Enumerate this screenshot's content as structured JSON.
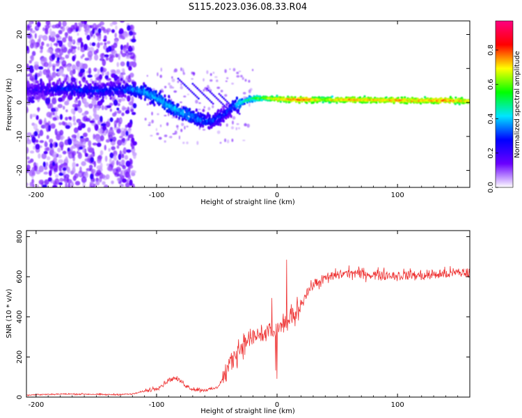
{
  "title": "S115.2023.036.08.33.R04",
  "chart_data": [
    {
      "type": "heatmap",
      "xlabel": "Height of straight line (km)",
      "ylabel": "Frequency (Hz)",
      "xlim": [
        -208,
        160
      ],
      "ylim": [
        -25,
        24
      ],
      "xticks": [
        -200,
        -100,
        0,
        100
      ],
      "yticks": [
        -20,
        -10,
        0,
        10,
        20
      ],
      "grid": false,
      "colorbar": {
        "label": "Normalized spectral amplitude",
        "range": [
          0,
          0.97
        ],
        "ticks": [
          0.0,
          0.2,
          0.4,
          0.6,
          0.8
        ],
        "tick_labels": [
          "0.0",
          "0.2",
          "0.4",
          "0.6",
          "0.8"
        ],
        "colors": [
          "#ffffff",
          "#6a00ff",
          "#0000ff",
          "#00e5ff",
          "#00ff00",
          "#ffff00",
          "#ff0000",
          "#ff0080"
        ]
      },
      "ridge": {
        "name": "",
        "points": [
          {
            "x": -205,
            "y": 3.5,
            "amp": 0.22
          },
          {
            "x": -190,
            "y": 3.8,
            "amp": 0.25
          },
          {
            "x": -175,
            "y": 4.0,
            "amp": 0.3
          },
          {
            "x": -160,
            "y": 3.5,
            "amp": 0.3
          },
          {
            "x": -145,
            "y": 3.5,
            "amp": 0.3
          },
          {
            "x": -130,
            "y": 3.8,
            "amp": 0.3
          },
          {
            "x": -120,
            "y": 3.8,
            "amp": 0.35
          },
          {
            "x": -110,
            "y": 3.0,
            "amp": 0.38
          },
          {
            "x": -100,
            "y": 1.5,
            "amp": 0.4
          },
          {
            "x": -92,
            "y": -0.5,
            "amp": 0.4
          },
          {
            "x": -85,
            "y": -2.0,
            "amp": 0.4
          },
          {
            "x": -75,
            "y": -3.5,
            "amp": 0.4
          },
          {
            "x": -65,
            "y": -5.0,
            "amp": 0.35
          },
          {
            "x": -55,
            "y": -5.5,
            "amp": 0.32
          },
          {
            "x": -45,
            "y": -4.0,
            "amp": 0.3
          },
          {
            "x": -38,
            "y": -1.5,
            "amp": 0.32
          },
          {
            "x": -30,
            "y": 0.0,
            "amp": 0.45
          },
          {
            "x": -20,
            "y": 1.2,
            "amp": 0.55
          },
          {
            "x": -10,
            "y": 1.3,
            "amp": 0.6
          },
          {
            "x": 0,
            "y": 1.0,
            "amp": 0.7
          },
          {
            "x": 20,
            "y": 0.8,
            "amp": 0.8
          },
          {
            "x": 40,
            "y": 0.8,
            "amp": 0.65
          },
          {
            "x": 60,
            "y": 0.8,
            "amp": 0.75
          },
          {
            "x": 80,
            "y": 0.7,
            "amp": 0.72
          },
          {
            "x": 100,
            "y": 0.6,
            "amp": 0.75
          },
          {
            "x": 120,
            "y": 0.6,
            "amp": 0.72
          },
          {
            "x": 140,
            "y": 0.6,
            "amp": 0.78
          },
          {
            "x": 160,
            "y": 0.4,
            "amp": 0.7
          }
        ]
      }
    },
    {
      "type": "line",
      "xlabel": "Height of straight line (km)",
      "ylabel": "SNR (10 * v/v)",
      "xlim": [
        -208,
        160
      ],
      "ylim": [
        0,
        830
      ],
      "xticks": [
        -200,
        -100,
        0,
        100
      ],
      "yticks": [
        0,
        200,
        400,
        600,
        800
      ],
      "grid": false,
      "series": [
        {
          "name": "",
          "color": "#ee3333",
          "x": [
            -208,
            -200,
            -180,
            -160,
            -140,
            -120,
            -110,
            -100,
            -95,
            -90,
            -85,
            -80,
            -75,
            -70,
            -60,
            -50,
            -45,
            -40,
            -35,
            -30,
            -25,
            -20,
            -15,
            -10,
            -5,
            0,
            5,
            10,
            15,
            20,
            25,
            30,
            40,
            50,
            60,
            70,
            80,
            90,
            100,
            110,
            120,
            130,
            140,
            150,
            160
          ],
          "y": [
            10,
            12,
            15,
            15,
            12,
            15,
            30,
            45,
            60,
            85,
            95,
            80,
            55,
            40,
            35,
            45,
            90,
            150,
            210,
            250,
            280,
            300,
            310,
            320,
            330,
            340,
            355,
            380,
            420,
            470,
            520,
            560,
            590,
            610,
            620,
            615,
            610,
            610,
            605,
            610,
            605,
            610,
            615,
            620,
            620
          ]
        }
      ]
    }
  ]
}
